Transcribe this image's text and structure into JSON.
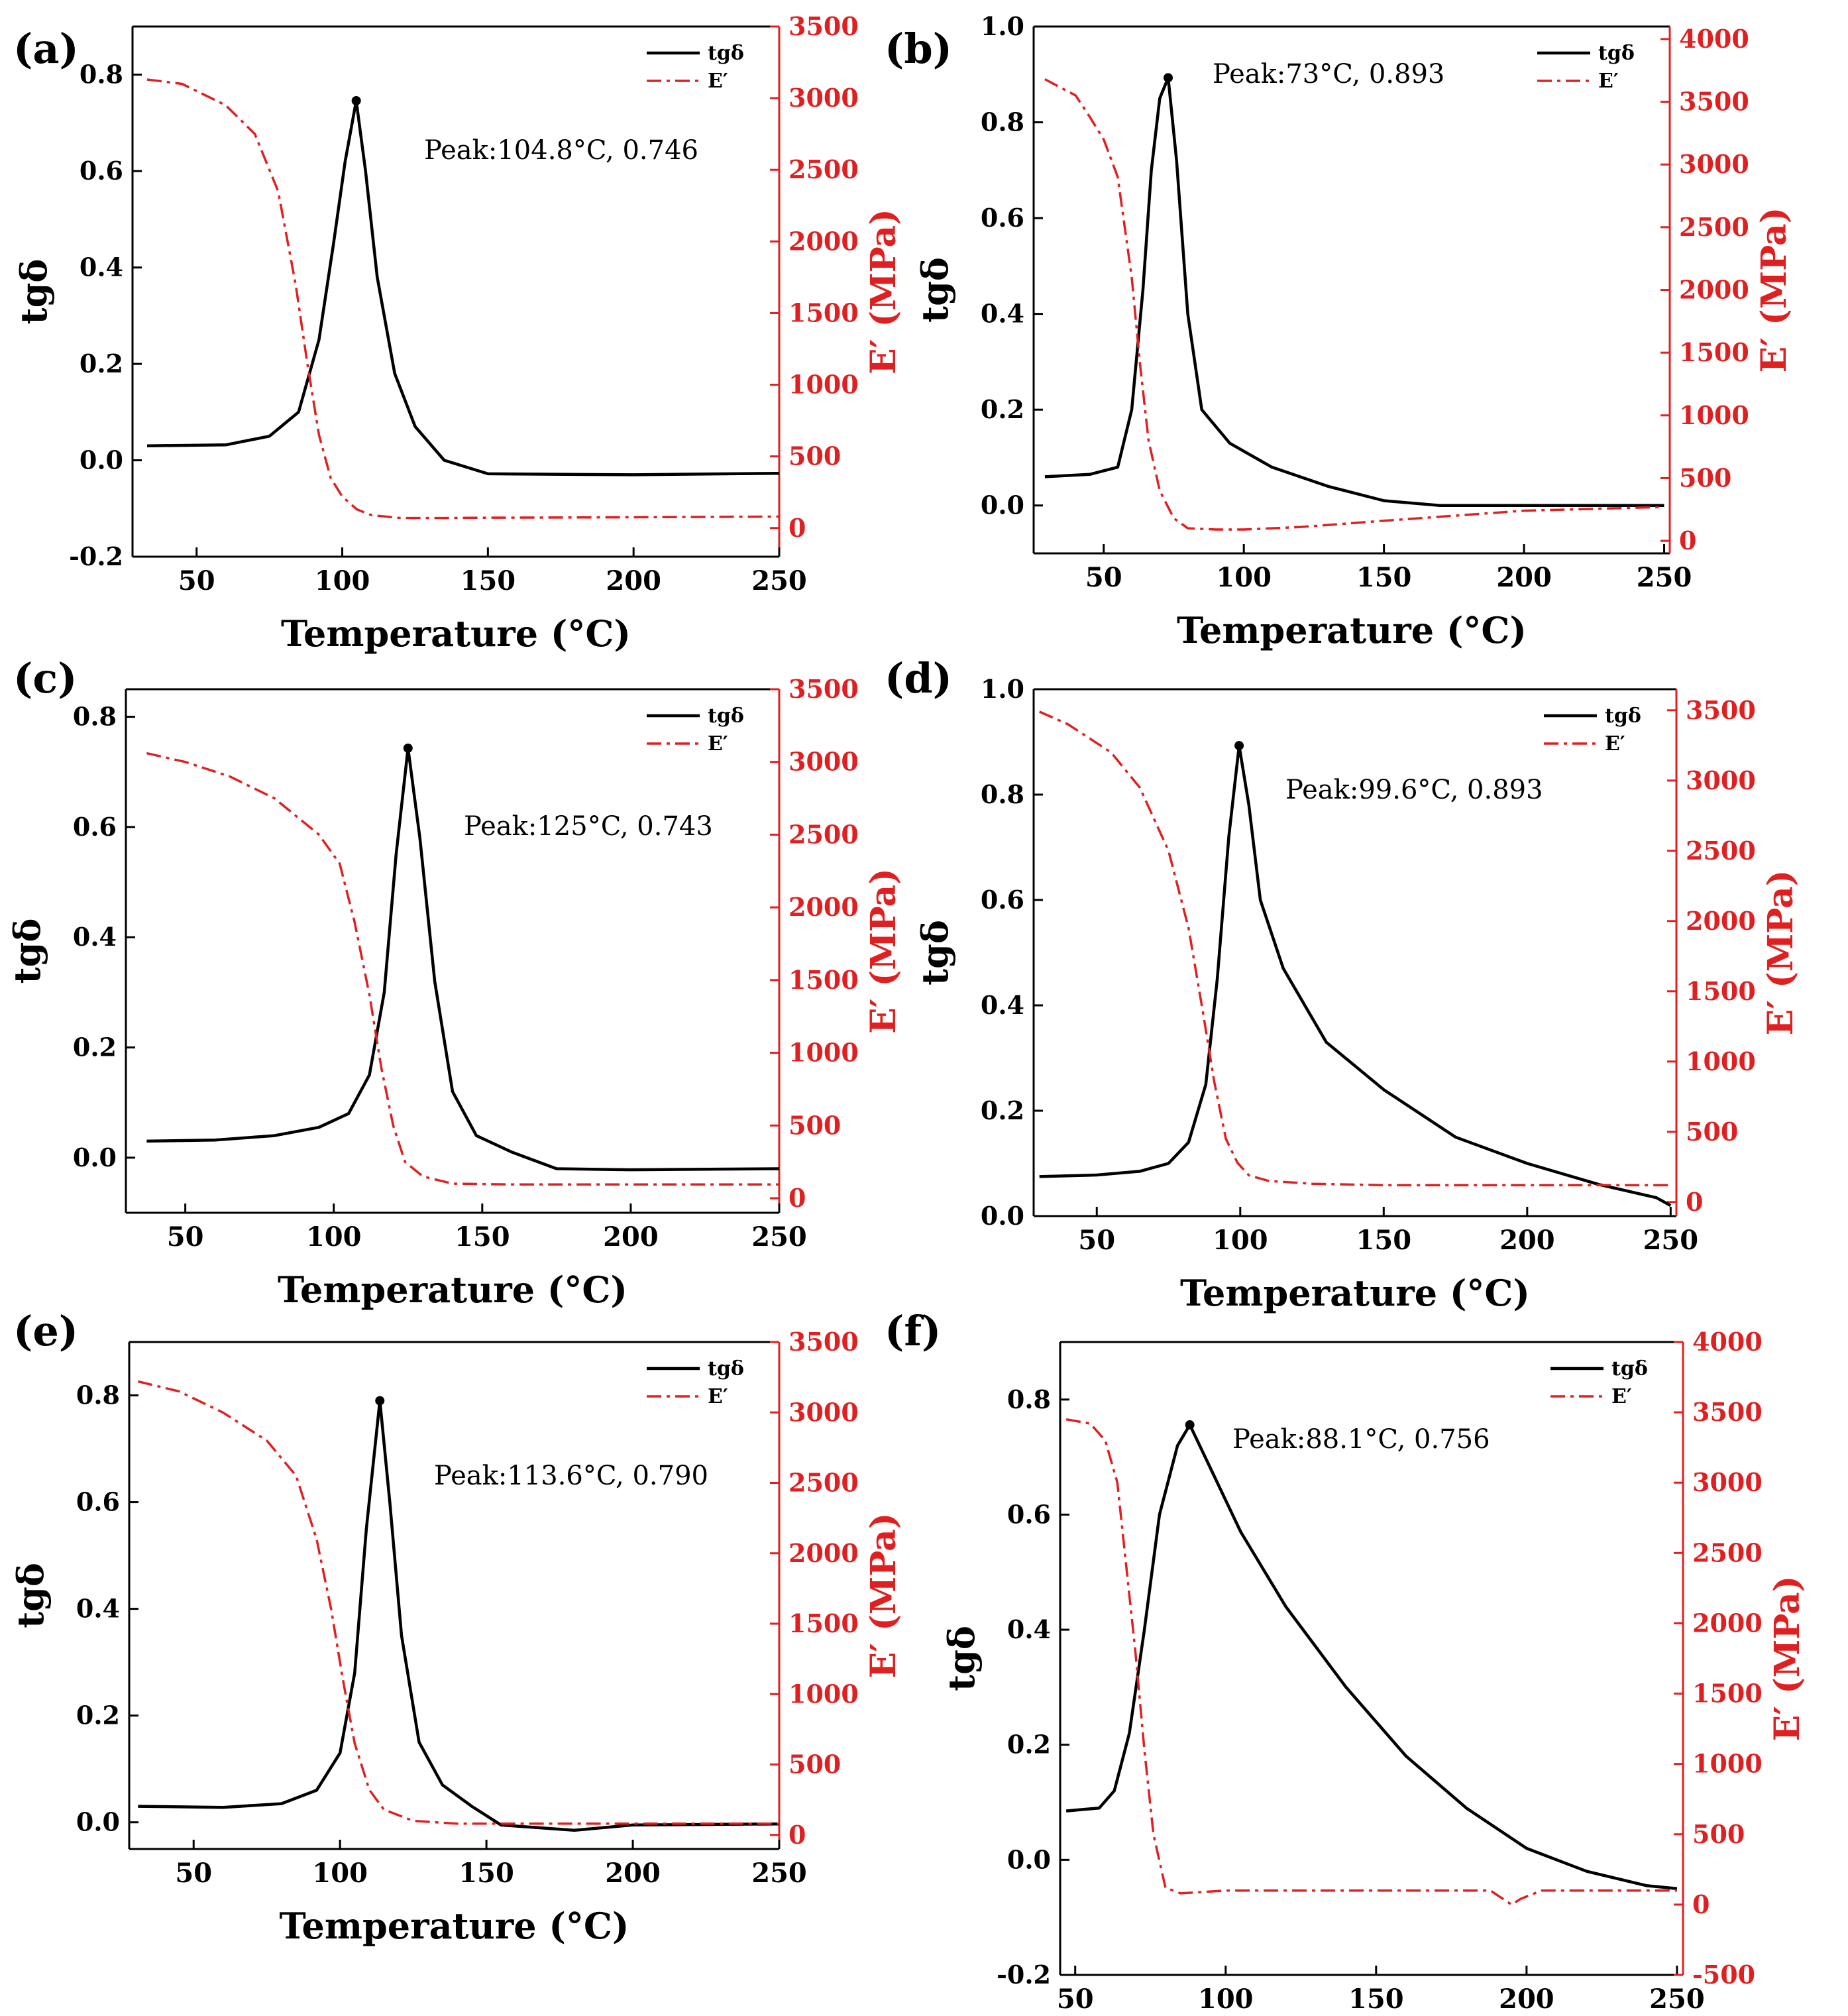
{
  "figure": {
    "common": {
      "xlabel": "Temperature (°C)",
      "ylabel": "tgδ",
      "y2label": "E′ (MPa)",
      "legend_tan": "tgδ",
      "legend_E": "E′"
    },
    "colors": {
      "tan": "#000000",
      "storage_modulus": "#e02020"
    }
  },
  "chart_data": [
    {
      "panel": "(a)",
      "type": "line",
      "title": "",
      "xlabel": "Temperature (°C)",
      "ylabel": "tgδ",
      "y2label": "E′ (MPa)",
      "xlim": [
        28,
        250
      ],
      "ylim": [
        -0.2,
        0.9
      ],
      "y2lim": [
        -200,
        3500
      ],
      "xticks": [
        50,
        100,
        150,
        200,
        250
      ],
      "yticks": [
        -0.2,
        0.0,
        0.2,
        0.4,
        0.6,
        0.8
      ],
      "y2ticks": [
        0,
        500,
        1000,
        1500,
        2000,
        2500,
        3000,
        3500
      ],
      "legend": [
        "tgδ",
        "E′"
      ],
      "legend_position": "top-right",
      "peak": {
        "x": 104.8,
        "y": 0.746,
        "label": "Peak:104.8°C, 0.746"
      },
      "series": [
        {
          "name": "tgδ",
          "axis": "left",
          "x": [
            33,
            60,
            75,
            85,
            92,
            97,
            101,
            104.8,
            108,
            112,
            118,
            125,
            135,
            150,
            200,
            250
          ],
          "y": [
            0.03,
            0.032,
            0.05,
            0.1,
            0.25,
            0.45,
            0.62,
            0.746,
            0.6,
            0.38,
            0.18,
            0.07,
            0.0,
            -0.028,
            -0.03,
            -0.027
          ]
        },
        {
          "name": "E′",
          "axis": "right",
          "x": [
            33,
            45,
            60,
            70,
            78,
            84,
            88,
            92,
            96,
            100,
            105,
            110,
            120,
            135,
            150,
            200,
            250
          ],
          "y": [
            3130,
            3100,
            2950,
            2750,
            2350,
            1700,
            1150,
            650,
            350,
            220,
            130,
            90,
            70,
            70,
            72,
            75,
            80
          ]
        }
      ]
    },
    {
      "panel": "(b)",
      "type": "line",
      "title": "",
      "xlabel": "Temperature (°C)",
      "ylabel": "tgδ",
      "y2label": "E′ (MPa)",
      "xlim": [
        25,
        252
      ],
      "ylim": [
        -0.1,
        1.0
      ],
      "y2lim": [
        -100,
        4100
      ],
      "xticks": [
        50,
        100,
        150,
        200,
        250
      ],
      "yticks": [
        0.0,
        0.2,
        0.4,
        0.6,
        0.8,
        1.0
      ],
      "y2ticks": [
        0,
        500,
        1000,
        1500,
        2000,
        2500,
        3000,
        3500,
        4000
      ],
      "legend": [
        "tgδ",
        "E′"
      ],
      "legend_position": "top-right",
      "peak": {
        "x": 73,
        "y": 0.893,
        "label": "Peak:73°C, 0.893"
      },
      "series": [
        {
          "name": "tgδ",
          "axis": "left",
          "x": [
            29,
            45,
            55,
            60,
            64,
            67,
            70,
            73,
            76,
            80,
            85,
            95,
            110,
            130,
            150,
            170,
            200,
            250
          ],
          "y": [
            0.06,
            0.065,
            0.08,
            0.2,
            0.45,
            0.7,
            0.85,
            0.893,
            0.72,
            0.4,
            0.2,
            0.13,
            0.08,
            0.04,
            0.01,
            0.0,
            0.0,
            0.0
          ]
        },
        {
          "name": "E′",
          "axis": "right",
          "x": [
            29,
            40,
            45,
            50,
            55,
            60,
            63,
            66,
            70,
            75,
            80,
            90,
            100,
            120,
            150,
            200,
            250
          ],
          "y": [
            3680,
            3550,
            3380,
            3200,
            2900,
            2100,
            1400,
            800,
            400,
            180,
            100,
            90,
            90,
            110,
            160,
            240,
            270
          ]
        }
      ]
    },
    {
      "panel": "(c)",
      "type": "line",
      "title": "",
      "xlabel": "Temperature (°C)",
      "ylabel": "tgδ",
      "y2label": "E′ (MPa)",
      "xlim": [
        30,
        250
      ],
      "ylim": [
        -0.1,
        0.85
      ],
      "y2lim": [
        -100,
        3500
      ],
      "xticks": [
        50,
        100,
        150,
        200,
        250
      ],
      "yticks": [
        0.0,
        0.2,
        0.4,
        0.6,
        0.8
      ],
      "y2ticks": [
        0,
        500,
        1000,
        1500,
        2000,
        2500,
        3000,
        3500
      ],
      "legend": [
        "tgδ",
        "E′"
      ],
      "legend_position": "top-right",
      "peak": {
        "x": 125,
        "y": 0.743,
        "label": "Peak:125°C, 0.743"
      },
      "series": [
        {
          "name": "tgδ",
          "axis": "left",
          "x": [
            37,
            60,
            80,
            95,
            105,
            112,
            117,
            121,
            125,
            129,
            134,
            140,
            148,
            160,
            175,
            200,
            250
          ],
          "y": [
            0.03,
            0.032,
            0.04,
            0.055,
            0.08,
            0.15,
            0.3,
            0.55,
            0.743,
            0.58,
            0.32,
            0.12,
            0.04,
            0.01,
            -0.02,
            -0.022,
            -0.02
          ]
        },
        {
          "name": "E′",
          "axis": "right",
          "x": [
            37,
            50,
            65,
            80,
            95,
            102,
            107,
            112,
            116,
            120,
            124,
            130,
            140,
            160,
            200,
            250
          ],
          "y": [
            3060,
            3000,
            2900,
            2750,
            2500,
            2300,
            1900,
            1400,
            900,
            500,
            250,
            150,
            100,
            95,
            95,
            95
          ]
        }
      ]
    },
    {
      "panel": "(d)",
      "type": "line",
      "title": "",
      "xlabel": "Temperature (°C)",
      "ylabel": "tgδ",
      "y2label": "E′ (MPa)",
      "xlim": [
        28,
        252
      ],
      "ylim": [
        0.0,
        1.0
      ],
      "y2lim": [
        -100,
        3650
      ],
      "xticks": [
        50,
        100,
        150,
        200,
        250
      ],
      "yticks": [
        0.0,
        0.2,
        0.4,
        0.6,
        0.8,
        1.0
      ],
      "y2ticks": [
        0,
        500,
        1000,
        1500,
        2000,
        2500,
        3000,
        3500
      ],
      "legend": [
        "tgδ",
        "E′"
      ],
      "legend_position": "top-right",
      "peak": {
        "x": 99.6,
        "y": 0.893,
        "label": "Peak:99.6°C, 0.893"
      },
      "series": [
        {
          "name": "tgδ",
          "axis": "left",
          "x": [
            30,
            50,
            65,
            75,
            82,
            88,
            92,
            96,
            99.6,
            103,
            107,
            115,
            130,
            150,
            175,
            200,
            225,
            245,
            250
          ],
          "y": [
            0.075,
            0.078,
            0.085,
            0.1,
            0.14,
            0.25,
            0.45,
            0.72,
            0.893,
            0.78,
            0.6,
            0.47,
            0.33,
            0.24,
            0.15,
            0.1,
            0.06,
            0.035,
            0.02
          ]
        },
        {
          "name": "E′",
          "axis": "right",
          "x": [
            30,
            40,
            55,
            65,
            75,
            82,
            87,
            91,
            95,
            99,
            103,
            110,
            125,
            150,
            200,
            250
          ],
          "y": [
            3490,
            3400,
            3200,
            2950,
            2500,
            1950,
            1350,
            850,
            450,
            280,
            190,
            150,
            130,
            120,
            120,
            120
          ]
        }
      ]
    },
    {
      "panel": "(e)",
      "type": "line",
      "title": "",
      "xlabel": "Temperature (°C)",
      "ylabel": "tgδ",
      "y2label": "E′ (MPa)",
      "xlim": [
        28,
        250
      ],
      "ylim": [
        -0.05,
        0.9
      ],
      "y2lim": [
        -100,
        3500
      ],
      "xticks": [
        50,
        100,
        150,
        200,
        250
      ],
      "yticks": [
        0.0,
        0.2,
        0.4,
        0.6,
        0.8
      ],
      "y2ticks": [
        0,
        500,
        1000,
        1500,
        2000,
        2500,
        3000,
        3500
      ],
      "legend": [
        "tgδ",
        "E′"
      ],
      "legend_position": "top-right",
      "peak": {
        "x": 113.6,
        "y": 0.79,
        "label": "Peak:113.6°C, 0.790"
      },
      "series": [
        {
          "name": "tgδ",
          "axis": "left",
          "x": [
            31,
            60,
            80,
            92,
            100,
            105,
            109,
            113.6,
            117,
            121,
            127,
            135,
            145,
            155,
            180,
            200,
            250
          ],
          "y": [
            0.03,
            0.028,
            0.035,
            0.06,
            0.13,
            0.28,
            0.55,
            0.79,
            0.6,
            0.35,
            0.15,
            0.07,
            0.03,
            -0.005,
            -0.015,
            -0.005,
            -0.003
          ]
        },
        {
          "name": "E′",
          "axis": "right",
          "x": [
            31,
            45,
            60,
            75,
            85,
            92,
            97,
            101,
            105,
            110,
            115,
            125,
            140,
            160,
            200,
            250
          ],
          "y": [
            3220,
            3150,
            3000,
            2800,
            2550,
            2100,
            1600,
            1100,
            650,
            320,
            180,
            100,
            80,
            80,
            80,
            80
          ]
        }
      ]
    },
    {
      "panel": "(f)",
      "type": "line",
      "title": "",
      "xlabel": "Temperature (°C)",
      "ylabel": "tgδ",
      "y2label": "E′ (MPa)",
      "xlim": [
        45,
        252
      ],
      "ylim": [
        -0.2,
        0.9
      ],
      "y2lim": [
        -500,
        4000
      ],
      "xticks": [
        50,
        100,
        150,
        200,
        250
      ],
      "yticks": [
        -0.2,
        0.0,
        0.2,
        0.4,
        0.6,
        0.8
      ],
      "y2ticks": [
        -500,
        0,
        500,
        1000,
        1500,
        2000,
        2500,
        3000,
        3500,
        4000
      ],
      "legend": [
        "tgδ",
        "E′"
      ],
      "legend_position": "top-right",
      "peak": {
        "x": 88.1,
        "y": 0.756,
        "label": "Peak:88.1°C, 0.756"
      },
      "series": [
        {
          "name": "tgδ",
          "axis": "left",
          "x": [
            47,
            58,
            63,
            68,
            73,
            78,
            84,
            88.1,
            95,
            105,
            120,
            140,
            160,
            180,
            200,
            220,
            240,
            250
          ],
          "y": [
            0.085,
            0.09,
            0.12,
            0.22,
            0.4,
            0.6,
            0.72,
            0.756,
            0.68,
            0.57,
            0.44,
            0.3,
            0.18,
            0.09,
            0.02,
            -0.02,
            -0.045,
            -0.05
          ]
        },
        {
          "name": "E′",
          "axis": "right",
          "x": [
            47,
            55,
            60,
            64,
            67,
            70,
            73,
            76,
            80,
            85,
            100,
            150,
            188,
            195,
            198,
            205,
            250
          ],
          "y": [
            3450,
            3420,
            3300,
            3000,
            2400,
            1800,
            1100,
            500,
            120,
            80,
            100,
            100,
            100,
            0,
            40,
            100,
            100
          ]
        }
      ]
    }
  ]
}
